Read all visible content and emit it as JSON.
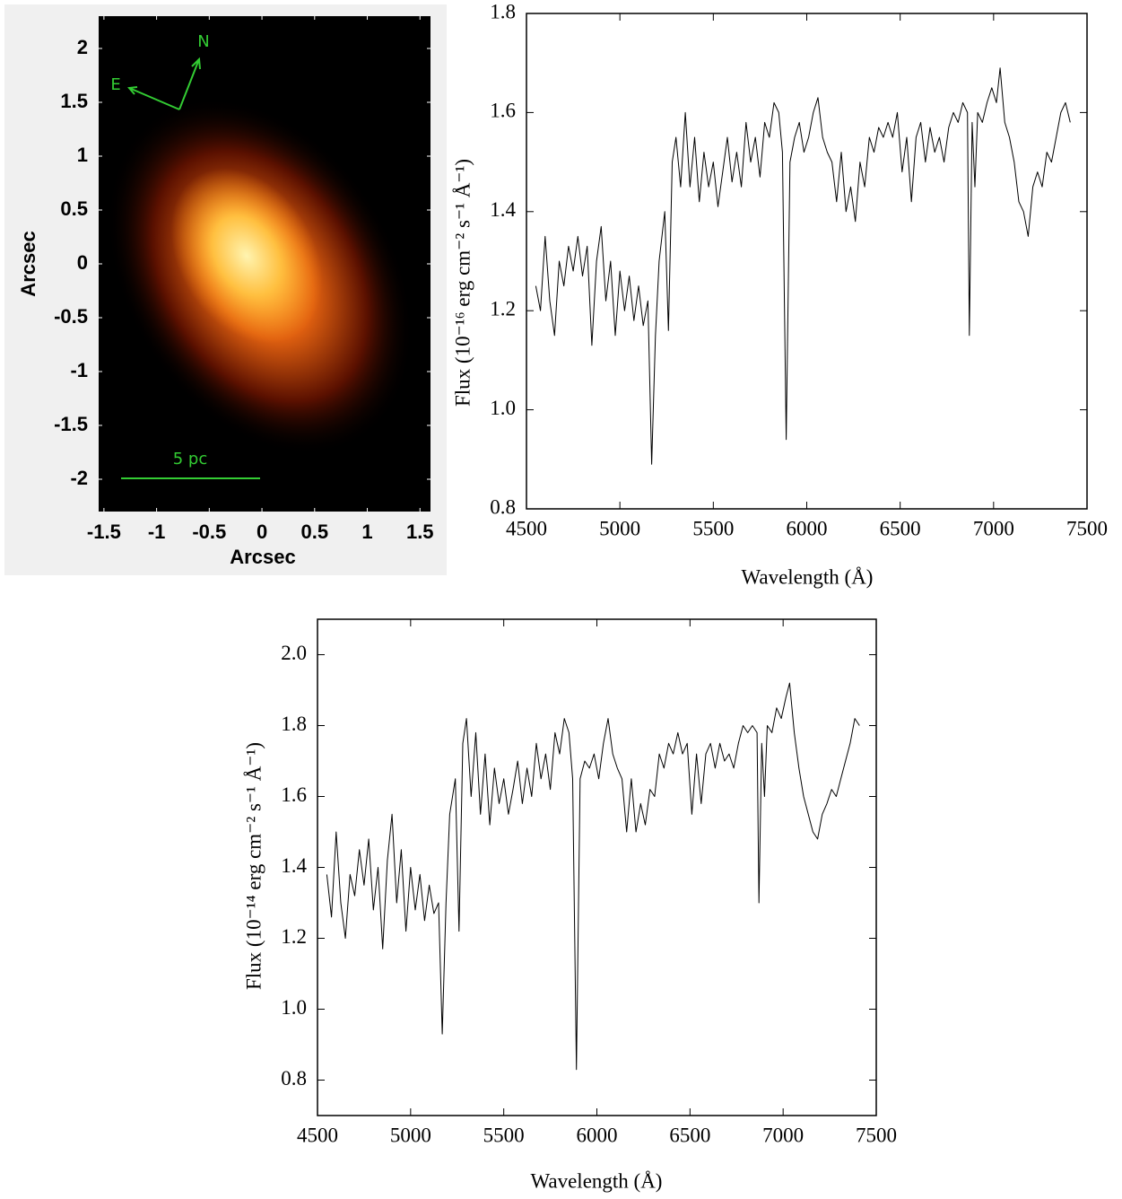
{
  "chart_data": [
    {
      "type": "image",
      "xlabel": "Arcsec",
      "ylabel": "Arcsec",
      "xlim": [
        -1.55,
        1.6
      ],
      "ylim": [
        -2.3,
        2.3
      ],
      "xticks": [
        -1.5,
        -1,
        -0.5,
        0,
        0.5,
        1,
        1.5
      ],
      "yticks": [
        2,
        1.5,
        1,
        0.5,
        0,
        -0.5,
        -1,
        -1.5,
        -2
      ],
      "annotations": [
        "N",
        "E",
        "5 pc"
      ]
    },
    {
      "type": "line",
      "xlabel": "Wavelength (Å)",
      "ylabel": "Flux (10⁻¹⁶ erg cm⁻² s⁻¹ Å⁻¹)",
      "xlim": [
        4500,
        7500
      ],
      "ylim": [
        0.8,
        1.8
      ],
      "color": "#000000",
      "xticks": [
        4500,
        5000,
        5500,
        6000,
        6500,
        7000,
        7500
      ],
      "yticks": [
        0.8,
        {
          "value": 1,
          "label": "1.0"
        },
        1.2,
        1.4,
        1.6,
        1.8
      ],
      "x": [
        4550,
        4575,
        4600,
        4625,
        4650,
        4675,
        4700,
        4725,
        4750,
        4775,
        4800,
        4825,
        4850,
        4875,
        4900,
        4925,
        4950,
        4975,
        5000,
        5025,
        5050,
        5075,
        5100,
        5125,
        5150,
        5170,
        5190,
        5210,
        5240,
        5260,
        5280,
        5300,
        5325,
        5350,
        5375,
        5400,
        5425,
        5450,
        5475,
        5500,
        5525,
        5550,
        5575,
        5600,
        5625,
        5650,
        5675,
        5700,
        5725,
        5750,
        5775,
        5800,
        5825,
        5850,
        5870,
        5890,
        5910,
        5935,
        5960,
        5985,
        6010,
        6035,
        6060,
        6085,
        6110,
        6135,
        6160,
        6185,
        6210,
        6235,
        6260,
        6285,
        6310,
        6335,
        6360,
        6385,
        6410,
        6435,
        6460,
        6485,
        6510,
        6535,
        6560,
        6585,
        6610,
        6635,
        6660,
        6685,
        6710,
        6735,
        6760,
        6785,
        6810,
        6835,
        6860,
        6870,
        6885,
        6900,
        6915,
        6940,
        6965,
        6990,
        7015,
        7035,
        7060,
        7085,
        7110,
        7135,
        7160,
        7185,
        7210,
        7235,
        7260,
        7285,
        7310,
        7335,
        7360,
        7385,
        7410
      ],
      "values": [
        1.25,
        1.2,
        1.35,
        1.22,
        1.15,
        1.3,
        1.25,
        1.33,
        1.28,
        1.35,
        1.27,
        1.33,
        1.13,
        1.3,
        1.37,
        1.22,
        1.3,
        1.15,
        1.28,
        1.2,
        1.27,
        1.18,
        1.25,
        1.17,
        1.22,
        0.89,
        1.15,
        1.3,
        1.4,
        1.16,
        1.5,
        1.55,
        1.45,
        1.6,
        1.45,
        1.55,
        1.42,
        1.52,
        1.45,
        1.5,
        1.41,
        1.48,
        1.55,
        1.46,
        1.52,
        1.45,
        1.58,
        1.5,
        1.55,
        1.47,
        1.58,
        1.55,
        1.62,
        1.6,
        1.52,
        0.94,
        1.5,
        1.55,
        1.58,
        1.52,
        1.55,
        1.6,
        1.63,
        1.55,
        1.52,
        1.5,
        1.42,
        1.52,
        1.4,
        1.45,
        1.38,
        1.5,
        1.45,
        1.55,
        1.52,
        1.57,
        1.55,
        1.58,
        1.55,
        1.6,
        1.48,
        1.55,
        1.42,
        1.55,
        1.58,
        1.5,
        1.57,
        1.52,
        1.55,
        1.5,
        1.57,
        1.6,
        1.58,
        1.62,
        1.6,
        1.15,
        1.58,
        1.45,
        1.6,
        1.58,
        1.62,
        1.65,
        1.62,
        1.69,
        1.58,
        1.55,
        1.5,
        1.42,
        1.4,
        1.35,
        1.45,
        1.48,
        1.45,
        1.52,
        1.5,
        1.55,
        1.6,
        1.62,
        1.58
      ]
    },
    {
      "type": "line",
      "xlabel": "Wavelength (Å)",
      "ylabel": "Flux (10⁻¹⁴ erg cm⁻² s⁻¹ Å⁻¹)",
      "xlim": [
        4500,
        7500
      ],
      "ylim": [
        0.7,
        2.1
      ],
      "color": "#000000",
      "xticks": [
        4500,
        5000,
        5500,
        6000,
        6500,
        7000,
        7500
      ],
      "yticks": [
        0.8,
        {
          "value": 1,
          "label": "1.0"
        },
        1.2,
        1.4,
        1.6,
        1.8,
        {
          "value": 2,
          "label": "2.0"
        }
      ],
      "x": [
        4550,
        4575,
        4600,
        4625,
        4650,
        4675,
        4700,
        4725,
        4750,
        4775,
        4800,
        4825,
        4850,
        4875,
        4900,
        4925,
        4950,
        4975,
        5000,
        5025,
        5050,
        5075,
        5100,
        5125,
        5150,
        5170,
        5190,
        5210,
        5240,
        5260,
        5280,
        5300,
        5325,
        5350,
        5375,
        5400,
        5425,
        5450,
        5475,
        5500,
        5525,
        5550,
        5575,
        5600,
        5625,
        5650,
        5675,
        5700,
        5725,
        5750,
        5775,
        5800,
        5825,
        5850,
        5870,
        5890,
        5910,
        5935,
        5960,
        5985,
        6010,
        6035,
        6060,
        6085,
        6110,
        6135,
        6160,
        6185,
        6210,
        6235,
        6260,
        6285,
        6310,
        6335,
        6360,
        6385,
        6410,
        6435,
        6460,
        6485,
        6510,
        6535,
        6560,
        6585,
        6610,
        6635,
        6660,
        6685,
        6710,
        6735,
        6760,
        6785,
        6810,
        6835,
        6860,
        6870,
        6885,
        6900,
        6915,
        6940,
        6965,
        6990,
        7015,
        7035,
        7060,
        7085,
        7110,
        7135,
        7160,
        7185,
        7210,
        7235,
        7260,
        7285,
        7310,
        7335,
        7360,
        7385,
        7410
      ],
      "values": [
        1.38,
        1.26,
        1.5,
        1.3,
        1.2,
        1.38,
        1.32,
        1.45,
        1.35,
        1.48,
        1.28,
        1.4,
        1.17,
        1.42,
        1.55,
        1.3,
        1.45,
        1.22,
        1.4,
        1.28,
        1.38,
        1.25,
        1.35,
        1.27,
        1.3,
        0.93,
        1.3,
        1.55,
        1.65,
        1.22,
        1.75,
        1.82,
        1.6,
        1.78,
        1.55,
        1.72,
        1.52,
        1.68,
        1.58,
        1.65,
        1.55,
        1.62,
        1.7,
        1.58,
        1.68,
        1.6,
        1.75,
        1.65,
        1.72,
        1.62,
        1.78,
        1.72,
        1.82,
        1.78,
        1.65,
        0.83,
        1.65,
        1.7,
        1.68,
        1.72,
        1.65,
        1.75,
        1.82,
        1.72,
        1.68,
        1.65,
        1.5,
        1.65,
        1.5,
        1.58,
        1.52,
        1.62,
        1.6,
        1.72,
        1.68,
        1.75,
        1.72,
        1.78,
        1.72,
        1.75,
        1.55,
        1.72,
        1.58,
        1.72,
        1.75,
        1.68,
        1.75,
        1.7,
        1.72,
        1.68,
        1.75,
        1.8,
        1.78,
        1.8,
        1.78,
        1.3,
        1.75,
        1.6,
        1.8,
        1.78,
        1.85,
        1.82,
        1.88,
        1.92,
        1.78,
        1.68,
        1.6,
        1.55,
        1.5,
        1.48,
        1.55,
        1.58,
        1.62,
        1.6,
        1.65,
        1.7,
        1.75,
        1.82,
        1.8
      ]
    }
  ]
}
